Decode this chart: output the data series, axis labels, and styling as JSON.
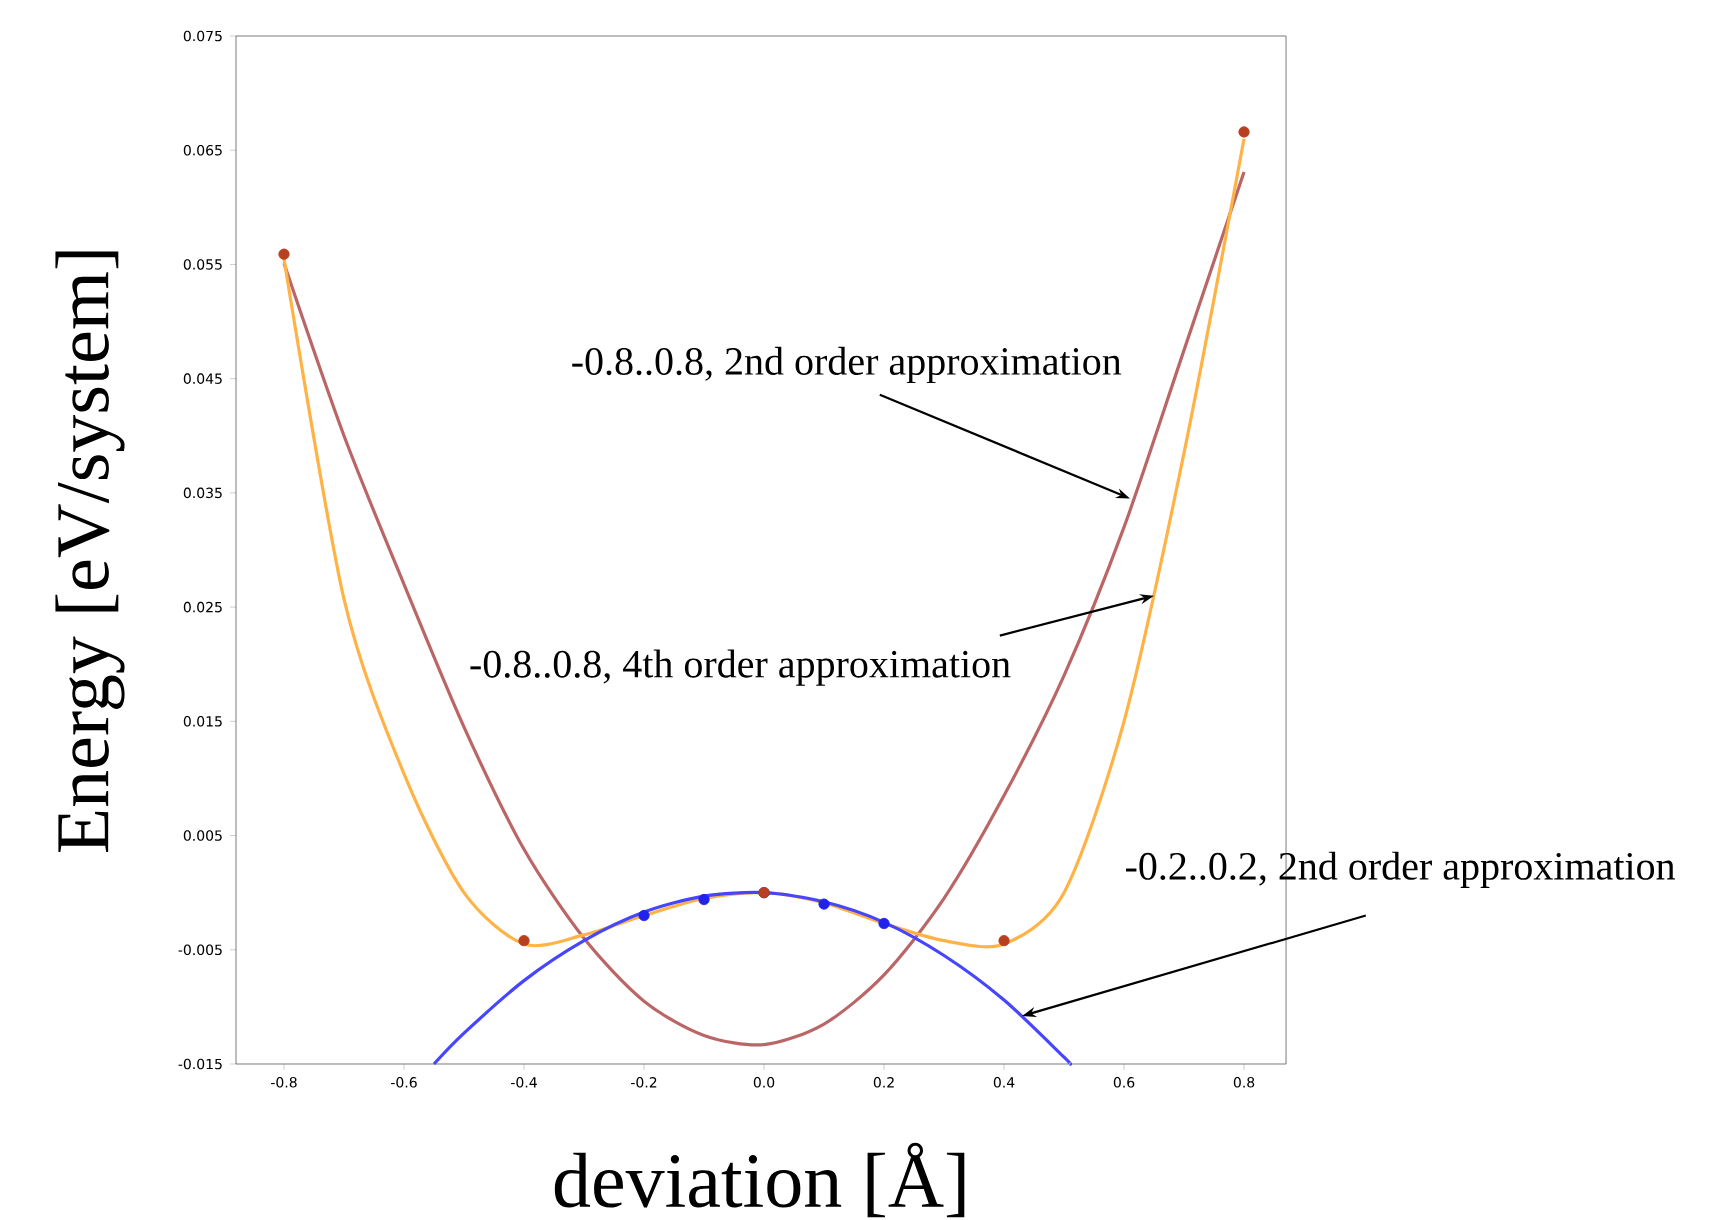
{
  "chart_data": {
    "type": "line",
    "xlabel": "deviation [Å]",
    "ylabel": "Energy [eV/system]",
    "xlim": [
      -0.88,
      0.87
    ],
    "ylim": [
      -0.015,
      0.075
    ],
    "xticks": [
      -0.8,
      -0.6,
      -0.4,
      -0.2,
      {
        "value": 0,
        "label": "0.0"
      },
      0.2,
      0.4,
      0.6,
      0.8
    ],
    "yticks": [
      -0.015,
      -0.005,
      0.005,
      0.015,
      0.025,
      0.035,
      0.045,
      0.055,
      0.065,
      0.075
    ],
    "grid": false,
    "series": [
      {
        "color": "#bb6666",
        "x": [
          -0.8,
          -0.7,
          -0.6,
          -0.5,
          -0.4,
          -0.3,
          -0.2,
          -0.1,
          0,
          0.1,
          0.2,
          0.3,
          0.4,
          0.5,
          0.6,
          0.7,
          0.8
        ],
        "values": [
          0.0551,
          0.04,
          0.027,
          0.0145,
          0.0038,
          -0.004,
          -0.0095,
          -0.0125,
          -0.0133,
          -0.0115,
          -0.0072,
          -0.0005,
          0.0085,
          0.019,
          0.032,
          0.0475,
          0.0631
        ]
      },
      {
        "color": "#ffb347",
        "x": [
          -0.8,
          -0.7,
          -0.6,
          -0.5,
          -0.4,
          -0.3,
          -0.2,
          -0.1,
          0,
          0.1,
          0.2,
          0.3,
          0.4,
          0.5,
          0.6,
          0.7,
          0.8
        ],
        "values": [
          0.0555,
          0.0257,
          0.0104,
          0,
          -0.0045,
          -0.0037,
          -0.002,
          -0.0005,
          0,
          -0.0009,
          -0.0027,
          -0.0042,
          -0.0045,
          0,
          0.015,
          0.0385,
          0.066
        ]
      },
      {
        "color": "#4646ff",
        "x": [
          -0.55,
          -0.5,
          -0.4,
          -0.3,
          -0.2,
          -0.1,
          0,
          0.1,
          0.2,
          0.3,
          0.4,
          0.5,
          0.51
        ],
        "values": [
          -0.015,
          -0.0123,
          -0.0077,
          -0.0042,
          -0.0017,
          -0.0003,
          0,
          -0.0008,
          -0.0026,
          -0.0055,
          -0.0094,
          -0.0144,
          -0.015
        ]
      },
      {
        "type": "scatter",
        "color": "#2222ee",
        "x": [
          -0.2,
          -0.1,
          0,
          0.1,
          0.2
        ],
        "values": [
          -0.002,
          -0.0006,
          0,
          -0.001,
          -0.0027
        ]
      },
      {
        "type": "scatter",
        "color": "#b8401f",
        "x": [
          -0.8,
          -0.4,
          0,
          0.4,
          0.8
        ],
        "values": [
          0.0559,
          -0.0042,
          0,
          -0.0042,
          0.0666
        ]
      }
    ],
    "annotations": [
      {
        "text": "-0.8..0.8, 2nd order approximation",
        "x": 0.61,
        "y": 0.0345
      },
      {
        "text": "-0.8..0.8, 4th order approximation",
        "x": 0.65,
        "y": 0.026
      },
      {
        "text": "-0.2..0.2, 2nd order approximation",
        "x": 0.43,
        "y": -0.0108
      }
    ]
  }
}
